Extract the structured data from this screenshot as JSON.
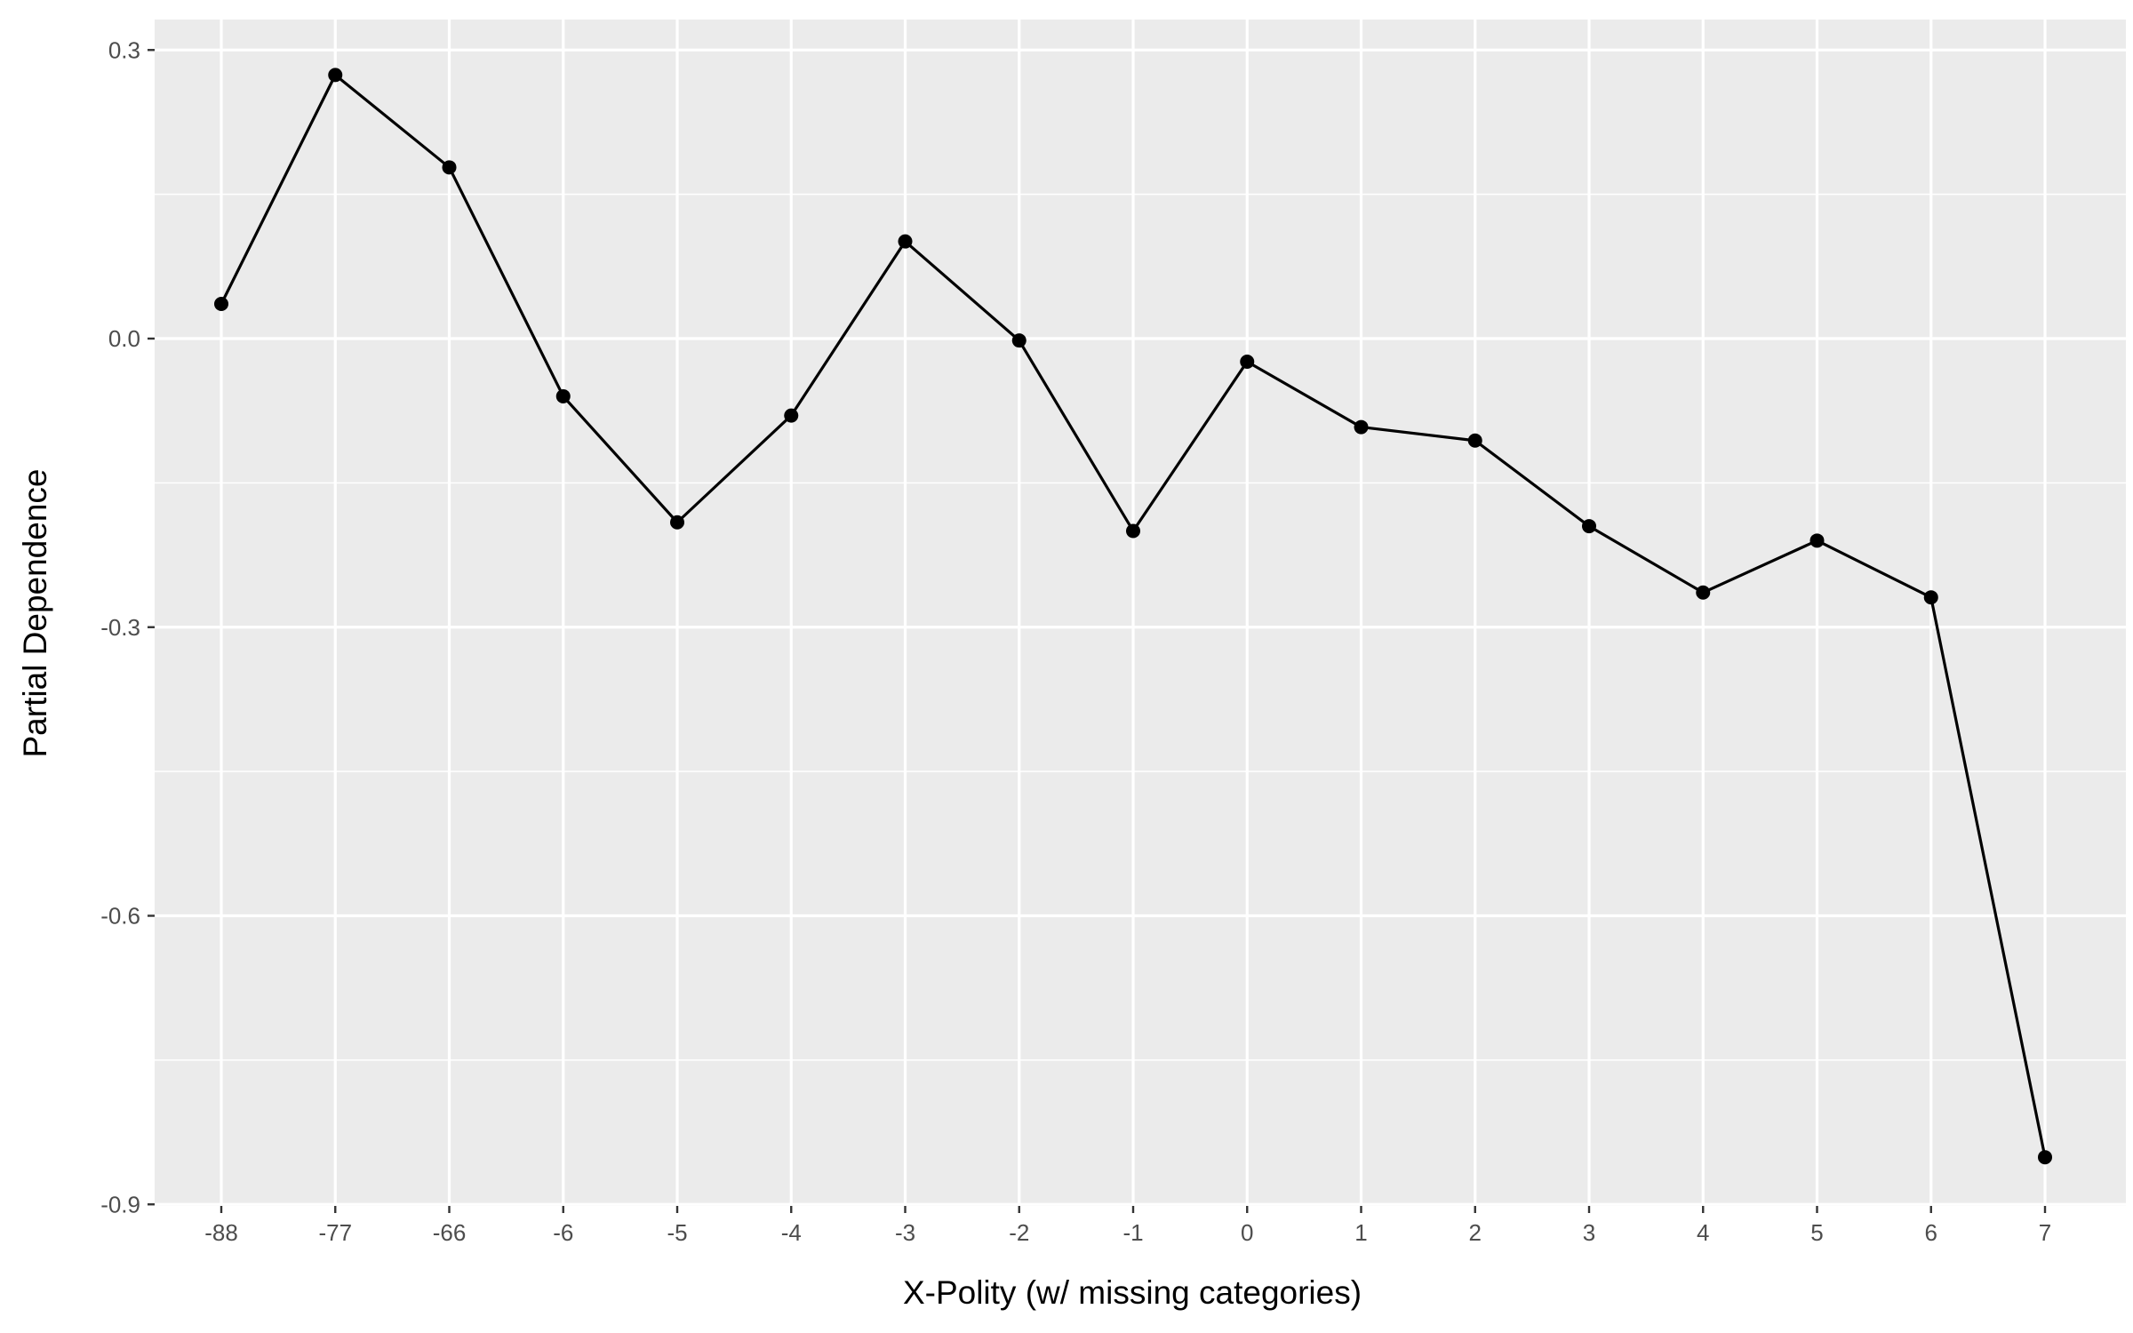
{
  "chart_data": {
    "type": "line",
    "title": "",
    "xlabel": "X-Polity (w/ missing categories)",
    "ylabel": "Partial Dependence",
    "categories": [
      "-88",
      "-77",
      "-66",
      "-6",
      "-5",
      "-4",
      "-3",
      "-2",
      "-1",
      "0",
      "1",
      "2",
      "3",
      "4",
      "5",
      "6",
      "7"
    ],
    "series": [
      {
        "values": [
          0.036,
          0.274,
          0.178,
          -0.06,
          -0.191,
          -0.08,
          0.101,
          -0.002,
          -0.2,
          -0.024,
          -0.092,
          -0.106,
          -0.195,
          -0.264,
          -0.21,
          -0.269,
          -0.851
        ]
      }
    ],
    "ylim": [
      -0.9,
      0.33
    ],
    "yticks": [
      "0.3",
      "0.0",
      "-0.3",
      "-0.6",
      "-0.9"
    ],
    "grid": true,
    "colors": {
      "panel": "#ebebeb",
      "grid": "#ffffff",
      "line": "#000000",
      "text": "#4d4d4d"
    }
  }
}
